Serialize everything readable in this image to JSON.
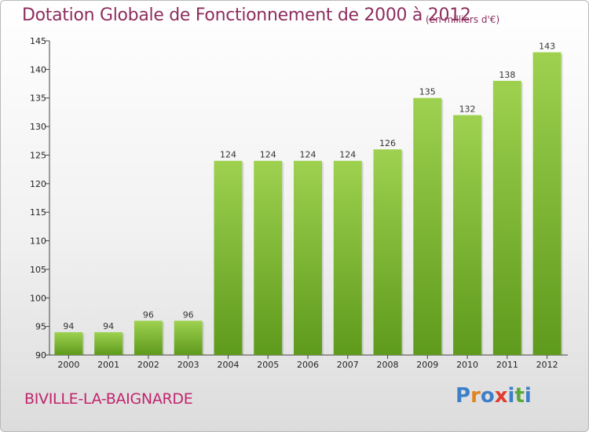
{
  "title": "Dotation Globale de Fonctionnement de 2000 à 2012",
  "unit_note": "(en milliers d'€)",
  "commune": "BIVILLE-LA-BAIGNARDE",
  "logo": {
    "letters": [
      "P",
      "r",
      "o",
      "x",
      "i",
      "t",
      "i"
    ],
    "colors": [
      "#3d7fc8",
      "#e2831f",
      "#3d7fc8",
      "#e13b2f",
      "#3d7fc8",
      "#5aa83b",
      "#3d7fc8"
    ]
  },
  "colors": {
    "bar_top": "#9ed14f",
    "bar_bottom": "#5e9a1c",
    "title": "#8d2d5e",
    "commune": "#c1246c"
  },
  "chart_data": {
    "type": "bar",
    "title": "Dotation Globale de Fonctionnement de 2000 à 2012",
    "xlabel": "",
    "ylabel": "",
    "categories": [
      "2000",
      "2001",
      "2002",
      "2003",
      "2004",
      "2005",
      "2006",
      "2007",
      "2008",
      "2009",
      "2010",
      "2011",
      "2012"
    ],
    "values": [
      94,
      94,
      96,
      96,
      124,
      124,
      124,
      124,
      126,
      135,
      132,
      138,
      143
    ],
    "ylim": [
      90,
      145
    ],
    "yticks": [
      90,
      95,
      100,
      105,
      110,
      115,
      120,
      125,
      130,
      135,
      140,
      145
    ],
    "grid": false,
    "legend": "none"
  }
}
